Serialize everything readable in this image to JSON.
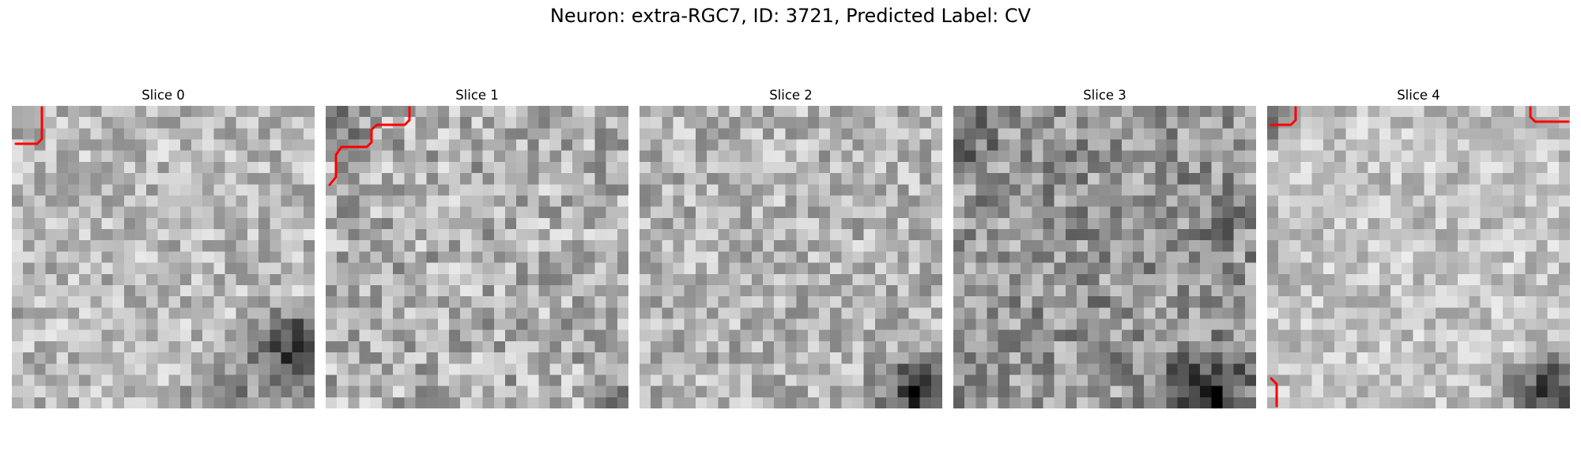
{
  "figure": {
    "title": "Neuron: extra-RGC7, ID: 3721, Predicted Label: CV",
    "trace_color": "#ff0000"
  },
  "panels": [
    {
      "title": "Slice 0"
    },
    {
      "title": "Slice 1"
    },
    {
      "title": "Slice 2"
    },
    {
      "title": "Slice 3"
    },
    {
      "title": "Slice 4"
    }
  ]
}
